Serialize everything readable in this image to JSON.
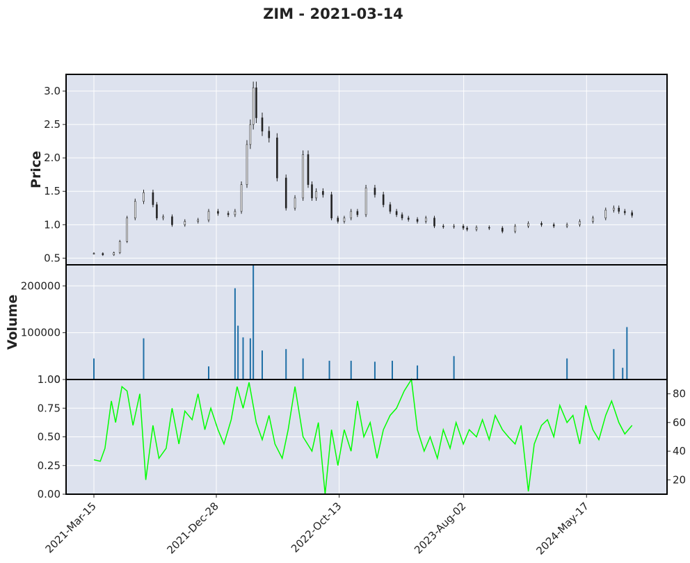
{
  "chart_data": [
    {
      "panel": "price",
      "type": "candlestick",
      "title": "ZIM - 2021-03-14",
      "ylabel": "Price",
      "ylim": [
        0.4,
        3.25
      ],
      "yticks": [
        "0.5",
        "1.0",
        "1.5",
        "2.0",
        "2.5",
        "3.0"
      ],
      "grid": true,
      "series": [
        {
          "x": [
            "2021-03-15",
            "2021-04-05",
            "2021-05-01",
            "2021-05-15",
            "2021-06-01",
            "2021-06-20",
            "2021-07-10",
            "2021-08-01",
            "2021-08-10",
            "2021-08-25",
            "2021-09-15",
            "2021-10-15",
            "2021-11-15",
            "2021-12-10",
            "2022-01-01",
            "2022-01-25",
            "2022-02-10",
            "2022-02-25",
            "2022-03-10",
            "2022-03-18",
            "2022-03-25",
            "2022-04-01",
            "2022-04-15",
            "2022-05-01",
            "2022-05-20",
            "2022-06-10",
            "2022-07-01",
            "2022-07-20",
            "2022-08-01",
            "2022-08-10",
            "2022-08-20",
            "2022-09-05",
            "2022-09-25",
            "2022-10-10",
            "2022-10-25",
            "2022-11-10",
            "2022-11-25",
            "2022-12-15",
            "2023-01-05",
            "2023-01-25",
            "2023-02-10",
            "2023-02-25",
            "2023-03-10",
            "2023-03-25",
            "2023-04-15",
            "2023-05-05",
            "2023-05-25",
            "2023-06-15",
            "2023-07-10",
            "2023-08-01",
            "2023-08-10",
            "2023-09-01",
            "2023-10-01",
            "2023-11-01",
            "2023-12-01",
            "2024-01-01",
            "2024-02-01",
            "2024-03-01",
            "2024-04-01",
            "2024-05-01",
            "2024-06-01",
            "2024-07-01",
            "2024-07-20",
            "2024-08-01",
            "2024-08-15",
            "2024-09-01"
          ],
          "close": [
            0.57,
            0.55,
            0.58,
            0.75,
            1.1,
            1.35,
            1.48,
            1.3,
            1.1,
            1.12,
            1.0,
            1.05,
            1.07,
            1.2,
            1.17,
            1.15,
            1.2,
            1.6,
            2.2,
            2.5,
            3.05,
            2.6,
            2.4,
            2.3,
            1.7,
            1.25,
            1.4,
            2.05,
            1.6,
            1.4,
            1.5,
            1.45,
            1.1,
            1.05,
            1.1,
            1.2,
            1.15,
            1.55,
            1.45,
            1.3,
            1.2,
            1.15,
            1.1,
            1.08,
            1.05,
            1.1,
            0.98,
            0.97,
            0.98,
            0.95,
            0.93,
            0.96,
            0.95,
            0.9,
            0.98,
            1.02,
            1.0,
            0.98,
            1.0,
            1.05,
            1.1,
            1.22,
            1.25,
            1.2,
            1.18,
            1.14
          ]
        }
      ]
    },
    {
      "panel": "volume",
      "type": "bar",
      "ylabel": "Volume",
      "ylim": [
        0,
        245000
      ],
      "yticks": [
        "0",
        "100000",
        "200000"
      ],
      "grid": true,
      "series": [
        {
          "x": [
            "2021-03-15",
            "2021-07-10",
            "2021-12-10",
            "2022-02-10",
            "2022-02-17",
            "2022-03-01",
            "2022-03-18",
            "2022-03-25",
            "2022-04-15",
            "2022-06-10",
            "2022-07-20",
            "2022-09-20",
            "2022-11-10",
            "2023-01-05",
            "2023-02-15",
            "2023-04-15",
            "2023-07-10",
            "2024-04-01",
            "2024-07-20",
            "2024-08-10",
            "2024-08-20"
          ],
          "values": [
            45000,
            88000,
            28000,
            195000,
            115000,
            90000,
            88000,
            245000,
            62000,
            65000,
            45000,
            40000,
            40000,
            38000,
            40000,
            30000,
            50000,
            45000,
            65000,
            25000,
            112000
          ]
        }
      ]
    },
    {
      "panel": "indicator",
      "type": "line",
      "ylim_left": [
        0,
        1
      ],
      "yticks_left": [
        "0.00",
        "0.25",
        "0.50",
        "0.75",
        "1.00"
      ],
      "ylim_right": [
        10,
        90
      ],
      "yticks_right": [
        "20",
        "40",
        "60",
        "80"
      ],
      "xticks": [
        "2021-Mar-15",
        "2021-Dec-28",
        "2022-Oct-13",
        "2023-Aug-02",
        "2024-May-17"
      ],
      "grid": true,
      "series": [
        {
          "color": "#00ff00",
          "x": [
            "2021-03-15",
            "2021-03-30",
            "2021-04-10",
            "2021-04-25",
            "2021-05-05",
            "2021-05-20",
            "2021-06-01",
            "2021-06-15",
            "2021-07-01",
            "2021-07-15",
            "2021-08-01",
            "2021-08-15",
            "2021-09-01",
            "2021-09-15",
            "2021-10-01",
            "2021-10-15",
            "2021-11-01",
            "2021-11-15",
            "2021-12-01",
            "2021-12-15",
            "2022-01-01",
            "2022-01-15",
            "2022-02-01",
            "2022-02-15",
            "2022-03-01",
            "2022-03-15",
            "2022-04-01",
            "2022-04-15",
            "2022-05-01",
            "2022-05-15",
            "2022-06-01",
            "2022-06-15",
            "2022-07-01",
            "2022-07-20",
            "2022-08-10",
            "2022-08-25",
            "2022-09-10",
            "2022-09-25",
            "2022-10-10",
            "2022-10-25",
            "2022-11-10",
            "2022-11-25",
            "2022-12-10",
            "2022-12-25",
            "2023-01-10",
            "2023-01-25",
            "2023-02-10",
            "2023-02-25",
            "2023-03-15",
            "2023-04-01",
            "2023-04-15",
            "2023-05-01",
            "2023-05-15",
            "2023-06-01",
            "2023-06-15",
            "2023-07-01",
            "2023-07-15",
            "2023-08-01",
            "2023-08-15",
            "2023-09-01",
            "2023-09-15",
            "2023-10-01",
            "2023-10-15",
            "2023-11-01",
            "2023-11-15",
            "2023-12-01",
            "2023-12-15",
            "2024-01-01",
            "2024-01-15",
            "2024-02-01",
            "2024-02-15",
            "2024-03-01",
            "2024-03-15",
            "2024-04-01",
            "2024-04-15",
            "2024-05-01",
            "2024-05-15",
            "2024-06-01",
            "2024-06-15",
            "2024-07-01",
            "2024-07-15",
            "2024-08-01",
            "2024-08-15",
            "2024-09-01"
          ],
          "values": [
            34,
            33,
            42,
            75,
            60,
            85,
            82,
            58,
            80,
            20,
            58,
            35,
            42,
            70,
            45,
            68,
            62,
            80,
            55,
            70,
            55,
            45,
            62,
            85,
            70,
            88,
            60,
            48,
            65,
            45,
            35,
            55,
            85,
            50,
            40,
            60,
            10,
            55,
            30,
            55,
            40,
            75,
            50,
            60,
            35,
            55,
            65,
            70,
            82,
            90,
            55,
            40,
            50,
            35,
            55,
            42,
            60,
            45,
            55,
            50,
            62,
            48,
            65,
            55,
            50,
            45,
            58,
            12,
            45,
            58,
            62,
            50,
            72,
            60,
            65,
            45,
            72,
            55,
            48,
            65,
            75,
            60,
            52,
            58
          ]
        }
      ]
    }
  ]
}
